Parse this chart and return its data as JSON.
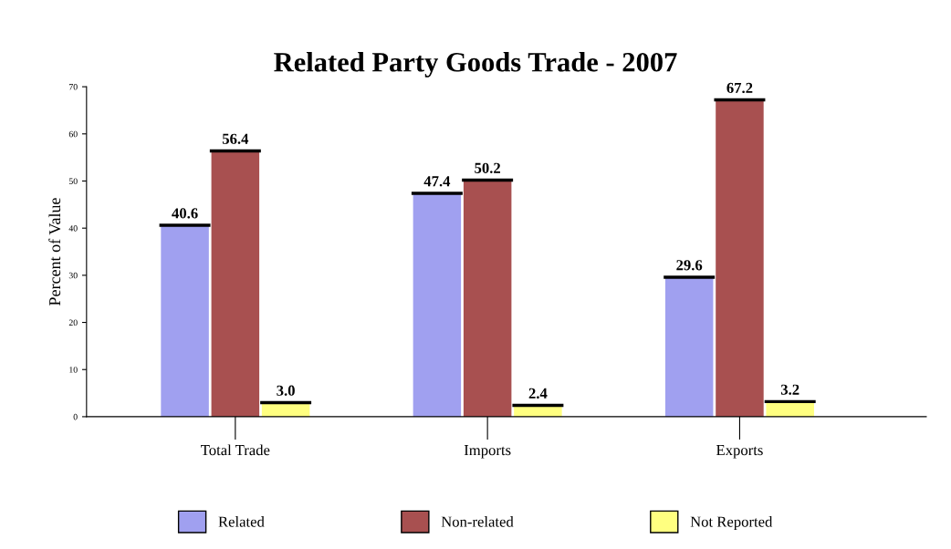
{
  "chart_data": {
    "type": "bar",
    "title": "Related Party Goods Trade - 2007",
    "ylabel": "Percent of Value",
    "categories": [
      "Total Trade",
      "Imports",
      "Exports"
    ],
    "series": [
      {
        "name": "Related",
        "color": "#a0a0f0",
        "values": [
          40.6,
          47.4,
          29.6
        ],
        "value_labels": [
          "40.6",
          "47.4",
          "29.6"
        ]
      },
      {
        "name": "Non-related",
        "color": "#a85050",
        "values": [
          56.4,
          50.2,
          67.2
        ],
        "value_labels": [
          "56.4",
          "50.2",
          "67.2"
        ]
      },
      {
        "name": "Not Reported",
        "color": "#ffff80",
        "values": [
          3.0,
          2.4,
          3.2
        ],
        "value_labels": [
          "3.0",
          "2.4",
          "3.2"
        ]
      }
    ],
    "ylim": [
      0,
      70
    ],
    "yticks": [
      0,
      10,
      20,
      30,
      40,
      50,
      60,
      70
    ],
    "grid": false,
    "legend": "bottom"
  }
}
